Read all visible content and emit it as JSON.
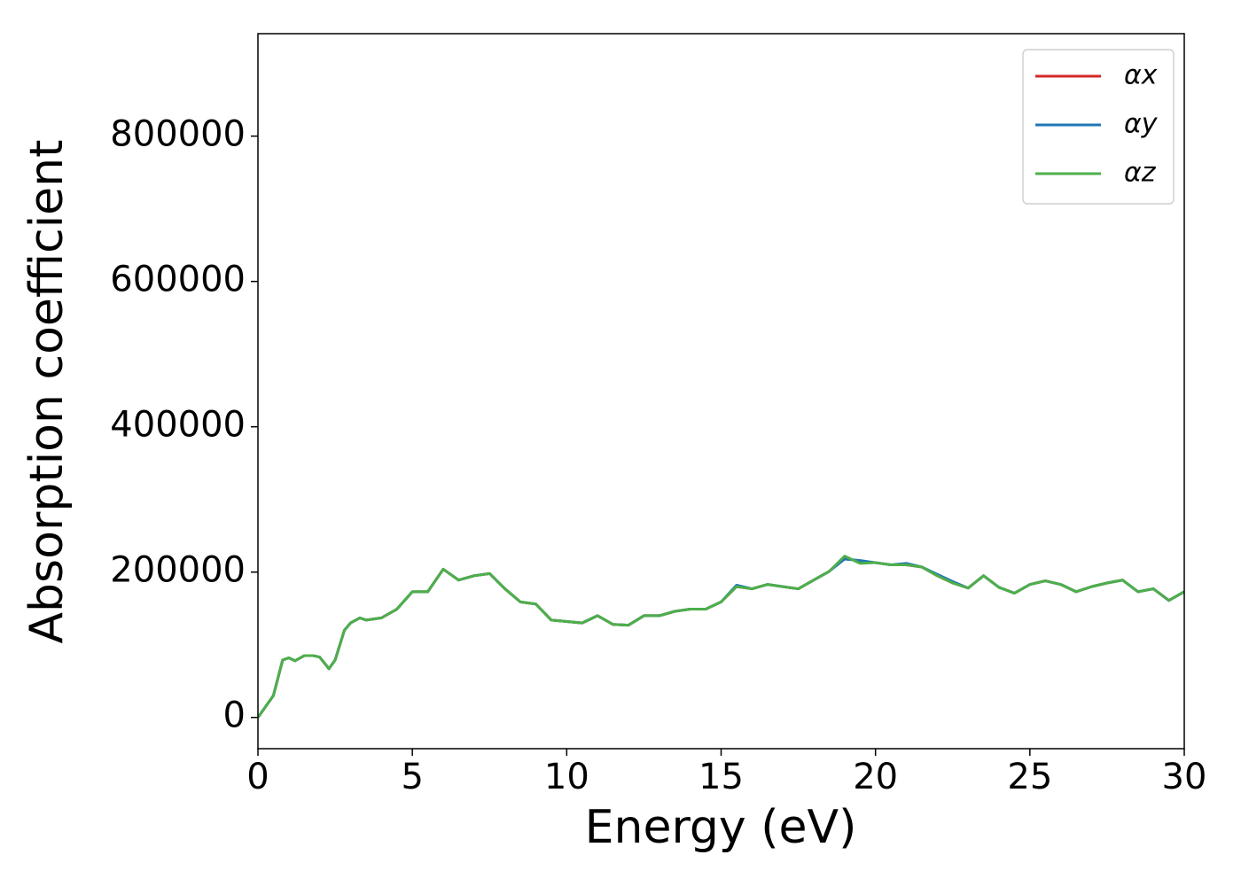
{
  "chart_data": {
    "type": "line",
    "xlabel": "Energy (eV)",
    "ylabel": "Absorption coefficient",
    "xlim": [
      0,
      30
    ],
    "ylim": [
      -43000,
      941000
    ],
    "xticks": [
      0,
      5,
      10,
      15,
      20,
      25,
      30
    ],
    "yticks": [
      0,
      200000,
      400000,
      600000,
      800000
    ],
    "legend": "upper right",
    "grid": false,
    "x": [
      0,
      0.5,
      0.8,
      1.0,
      1.2,
      1.5,
      1.8,
      2.0,
      2.3,
      2.5,
      2.8,
      3.0,
      3.3,
      3.5,
      4.0,
      4.5,
      5.0,
      5.5,
      6.0,
      6.5,
      7.0,
      7.5,
      8.0,
      8.5,
      9.0,
      9.5,
      10,
      10.5,
      11,
      11.5,
      12,
      12.5,
      13,
      13.5,
      14,
      14.5,
      15,
      15.5,
      16,
      16.5,
      17,
      17.5,
      18,
      18.5,
      19,
      19.5,
      20,
      20.5,
      21,
      21.5,
      22,
      22.5,
      23,
      23.5,
      24,
      24.5,
      25,
      25.5,
      26,
      26.5,
      27,
      27.5,
      28,
      28.5,
      29,
      29.5,
      30
    ],
    "series": [
      {
        "name": "αx",
        "color": "#d62728",
        "values": [
          0,
          30000,
          79000,
          82000,
          78000,
          85000,
          85000,
          83000,
          67000,
          79000,
          120000,
          130000,
          137000,
          134000,
          137000,
          149000,
          173000,
          173000,
          204000,
          189000,
          195000,
          198000,
          177000,
          159000,
          156000,
          134000,
          132000,
          130000,
          140000,
          128000,
          127000,
          140000,
          140000,
          146000,
          149000,
          149000,
          159000,
          180000,
          177000,
          183000,
          180000,
          177000,
          189000,
          201000,
          220000,
          214000,
          213000,
          210000,
          210000,
          207000,
          195000,
          185000,
          178000,
          195000,
          179000,
          171000,
          183000,
          188000,
          183000,
          173000,
          180000,
          185000,
          189000,
          173000,
          177000,
          161000,
          173000
        ]
      },
      {
        "name": "αy",
        "color": "#1f77b4",
        "values": [
          0,
          30000,
          79000,
          82000,
          78000,
          85000,
          85000,
          83000,
          67000,
          79000,
          120000,
          130000,
          137000,
          134000,
          137000,
          149000,
          173000,
          173000,
          204000,
          189000,
          195000,
          198000,
          177000,
          159000,
          156000,
          134000,
          132000,
          130000,
          140000,
          128000,
          127000,
          140000,
          140000,
          146000,
          149000,
          149000,
          159000,
          182000,
          177000,
          183000,
          180000,
          177000,
          189000,
          201000,
          218000,
          216000,
          213000,
          210000,
          212000,
          207000,
          197000,
          187000,
          178000,
          195000,
          179000,
          171000,
          183000,
          188000,
          183000,
          173000,
          180000,
          185000,
          189000,
          173000,
          177000,
          161000,
          173000
        ]
      },
      {
        "name": "αz",
        "color": "#4daf4a",
        "values": [
          0,
          30000,
          79000,
          82000,
          78000,
          85000,
          85000,
          83000,
          67000,
          79000,
          120000,
          130000,
          137000,
          134000,
          137000,
          149000,
          173000,
          173000,
          204000,
          189000,
          195000,
          198000,
          177000,
          159000,
          156000,
          134000,
          132000,
          130000,
          140000,
          128000,
          127000,
          140000,
          140000,
          146000,
          149000,
          149000,
          159000,
          180000,
          177000,
          183000,
          180000,
          177000,
          189000,
          201000,
          222000,
          212000,
          213000,
          210000,
          210000,
          207000,
          195000,
          185000,
          178000,
          195000,
          179000,
          171000,
          183000,
          188000,
          183000,
          173000,
          180000,
          185000,
          189000,
          173000,
          177000,
          161000,
          173000
        ]
      }
    ]
  }
}
